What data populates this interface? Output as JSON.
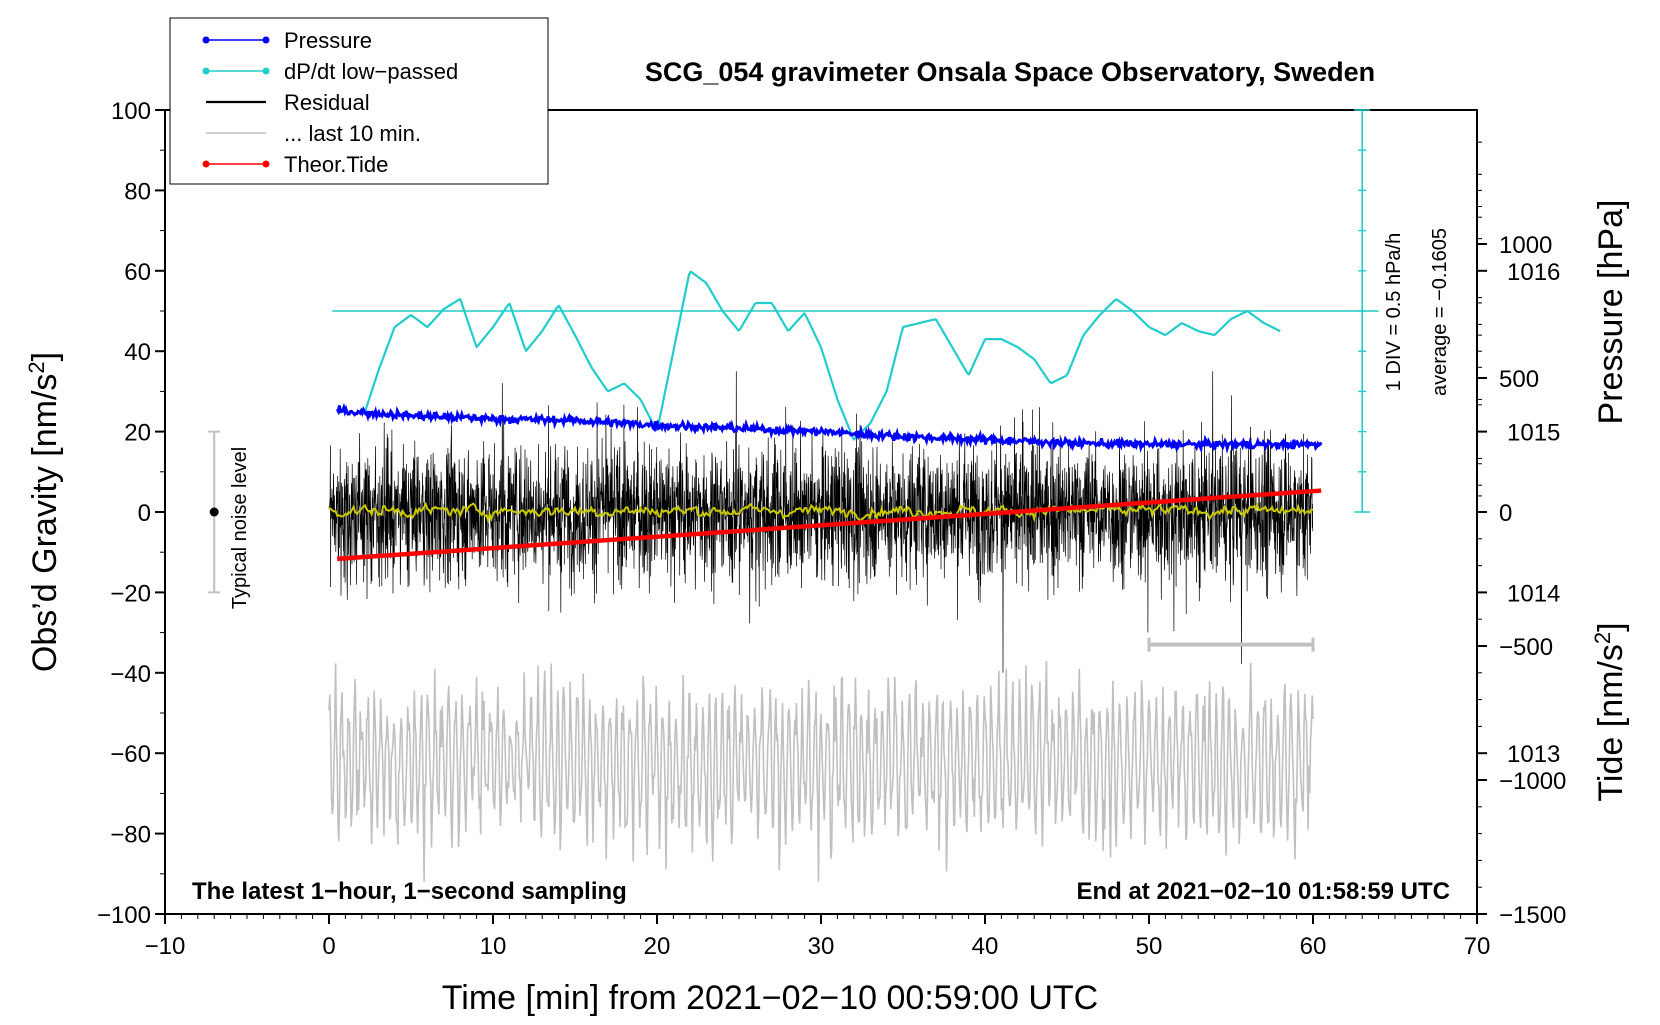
{
  "chart_data": {
    "type": "line",
    "title": "SCG_054 gravimeter Onsala Space Observatory, Sweden",
    "xlabel": "Time [min] from 2021−02−10 00:59:00 UTC",
    "ylabel_left_main": "Obs’d Gravity [nm/s",
    "ylabel_left_sup": "2",
    "ylabel_left_end": "]",
    "ylabel_right_pressure": "Pressure [hPa]",
    "ylabel_right_tide_main": "Tide [nm/s",
    "ylabel_right_tide_sup": "2",
    "ylabel_right_tide_end": "]",
    "xlim": [
      -10,
      70
    ],
    "ylim": [
      -100,
      100
    ],
    "pressure_lim": [
      1012,
      1017
    ],
    "tide_lim": [
      -1500,
      1500
    ],
    "x_ticks": [
      {
        "v": -10,
        "label": "−10"
      },
      {
        "v": 0,
        "label": "0"
      },
      {
        "v": 10,
        "label": "10"
      },
      {
        "v": 20,
        "label": "20"
      },
      {
        "v": 30,
        "label": "30"
      },
      {
        "v": 40,
        "label": "40"
      },
      {
        "v": 50,
        "label": "50"
      },
      {
        "v": 60,
        "label": "60"
      },
      {
        "v": 70,
        "label": "70"
      }
    ],
    "y_ticks": [
      {
        "v": 100,
        "label": "100"
      },
      {
        "v": 80,
        "label": "80"
      },
      {
        "v": 60,
        "label": "60"
      },
      {
        "v": 40,
        "label": "40"
      },
      {
        "v": 20,
        "label": "20"
      },
      {
        "v": 0,
        "label": "0"
      },
      {
        "v": -20,
        "label": "−20"
      },
      {
        "v": -40,
        "label": "−40"
      },
      {
        "v": -60,
        "label": "−60"
      },
      {
        "v": -80,
        "label": "−80"
      },
      {
        "v": -100,
        "label": "−100"
      }
    ],
    "pressure_ticks": [
      {
        "v": 1016,
        "label": "1016"
      },
      {
        "v": 1015,
        "label": "1015"
      },
      {
        "v": 1014,
        "label": "1014"
      },
      {
        "v": 1013,
        "label": "1013"
      }
    ],
    "tide_ticks": [
      {
        "v": 1000,
        "label": "1000"
      },
      {
        "v": 500,
        "label": "500"
      },
      {
        "v": 0,
        "label": "0"
      },
      {
        "v": -500,
        "label": "−500"
      },
      {
        "v": -1000,
        "label": "−1000"
      },
      {
        "v": -1500,
        "label": "−1500"
      }
    ],
    "legend": [
      {
        "name": "Pressure",
        "color": "#0000ff",
        "marker": true
      },
      {
        "name": "dP/dt low−passed",
        "color": "#22cccc",
        "marker": true
      },
      {
        "name": "Residual",
        "color": "#000000",
        "marker": false
      },
      {
        "name": "... last 10 min.",
        "color": "#c0c0c0",
        "marker": false
      },
      {
        "name": "Theor.Tide",
        "color": "#ff0000",
        "marker": true
      }
    ],
    "series": [
      {
        "name": "Pressure",
        "units": "hPa",
        "x": [
          0.5,
          5,
          10,
          15,
          20,
          25,
          30,
          35,
          40,
          45,
          50,
          55,
          60.5
        ],
        "values": [
          1015.13,
          1015.1,
          1015.08,
          1015.07,
          1015.04,
          1015.02,
          1015.0,
          1014.97,
          1014.95,
          1014.93,
          1014.92,
          1014.92,
          1014.92
        ]
      },
      {
        "name": "dP/dt low−passed",
        "units": "divisions",
        "x": [
          2.2,
          3,
          4,
          5,
          6,
          7,
          8,
          9,
          10,
          11,
          12,
          13,
          14,
          15,
          16,
          17,
          18,
          19,
          20,
          21,
          22,
          23,
          24,
          25,
          26,
          27,
          28,
          29,
          30,
          31,
          32,
          33,
          34,
          35,
          36,
          37,
          38,
          39,
          40,
          41,
          42,
          43,
          44,
          45,
          46,
          47,
          48,
          49,
          50,
          51,
          52,
          53,
          54,
          55,
          56,
          57,
          58
        ],
        "values": [
          -2.5,
          -1.5,
          -0.4,
          -0.1,
          -0.4,
          0.05,
          0.3,
          -0.9,
          -0.4,
          0.2,
          -1.0,
          -0.5,
          0.15,
          -0.6,
          -1.4,
          -2.0,
          -1.8,
          -2.2,
          -3.0,
          -1.0,
          1.0,
          0.7,
          0.0,
          -0.5,
          0.2,
          0.2,
          -0.5,
          -0.05,
          -0.9,
          -2.2,
          -3.2,
          -2.8,
          -2.0,
          -0.4,
          -0.3,
          -0.2,
          -0.9,
          -1.6,
          -0.7,
          -0.7,
          -0.9,
          -1.2,
          -1.8,
          -1.6,
          -0.6,
          -0.1,
          0.3,
          0.0,
          -0.4,
          -0.6,
          -0.3,
          -0.5,
          -0.6,
          -0.2,
          0.0,
          -0.3,
          -0.5
        ]
      },
      {
        "name": "Residual",
        "units": "nm/s^2",
        "x_range": [
          0,
          60
        ],
        "rms": 10,
        "peak": 35
      },
      {
        "name": "... last 10 min.",
        "units": "nm/s^2",
        "x_range": [
          0,
          60
        ],
        "center": -62,
        "amplitude": 25
      },
      {
        "name": "Theor.Tide",
        "units": "nm/s^2",
        "x": [
          0.5,
          60.5
        ],
        "values": [
          -175,
          80
        ]
      },
      {
        "name": "Smoothed residual",
        "units": "nm/s^2",
        "x_range": [
          0,
          60
        ],
        "values": [
          0,
          0
        ]
      }
    ],
    "noise_bar": {
      "x": -7,
      "y": 0,
      "low": -20,
      "high": 20,
      "label": "Typical noise level"
    },
    "last10_bar": {
      "x_range": [
        50,
        60
      ],
      "y": -33
    },
    "div_label": "1 DIV = 0.5 hPa/h",
    "avg_label": "average = −0.1605",
    "zero_line_y": 50,
    "note_left": "The latest 1−hour, 1−second sampling",
    "note_right": "End at 2021−02−10 01:58:59 UTC"
  }
}
